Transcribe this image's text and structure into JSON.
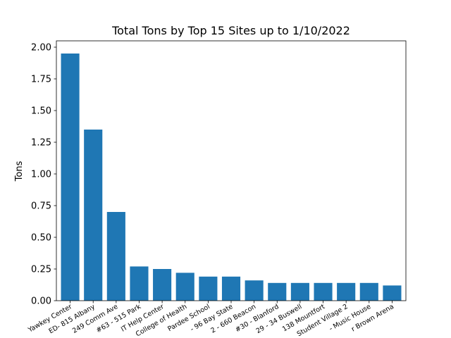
{
  "chart_data": {
    "type": "bar",
    "title": "Total Tons by Top 15 Sites up to 1/10/2022",
    "xlabel": "",
    "ylabel": "Tons",
    "ylim": [
      0,
      2.05
    ],
    "yticks": [
      "0.00",
      "0.25",
      "0.50",
      "0.75",
      "1.00",
      "1.25",
      "1.50",
      "1.75",
      "2.00"
    ],
    "grid": false,
    "bar_color": "#1f77b4",
    "categories": [
      "Yawkey Center",
      "ED- 815 Albany",
      "249 Comm Ave",
      "#63 - 515 Park",
      "IT Help Center",
      "College of Health",
      "Pardee School",
      "- 96 Bay State",
      "2 - 660 Beacon",
      "#30 - Blanford",
      "29 - 34 Buswell",
      "138 Mountfort",
      "Student Village 2",
      "- Music House",
      "r Brown Arena"
    ],
    "values": [
      1.95,
      1.35,
      0.7,
      0.27,
      0.25,
      0.22,
      0.19,
      0.19,
      0.16,
      0.14,
      0.14,
      0.14,
      0.14,
      0.14,
      0.12
    ]
  }
}
